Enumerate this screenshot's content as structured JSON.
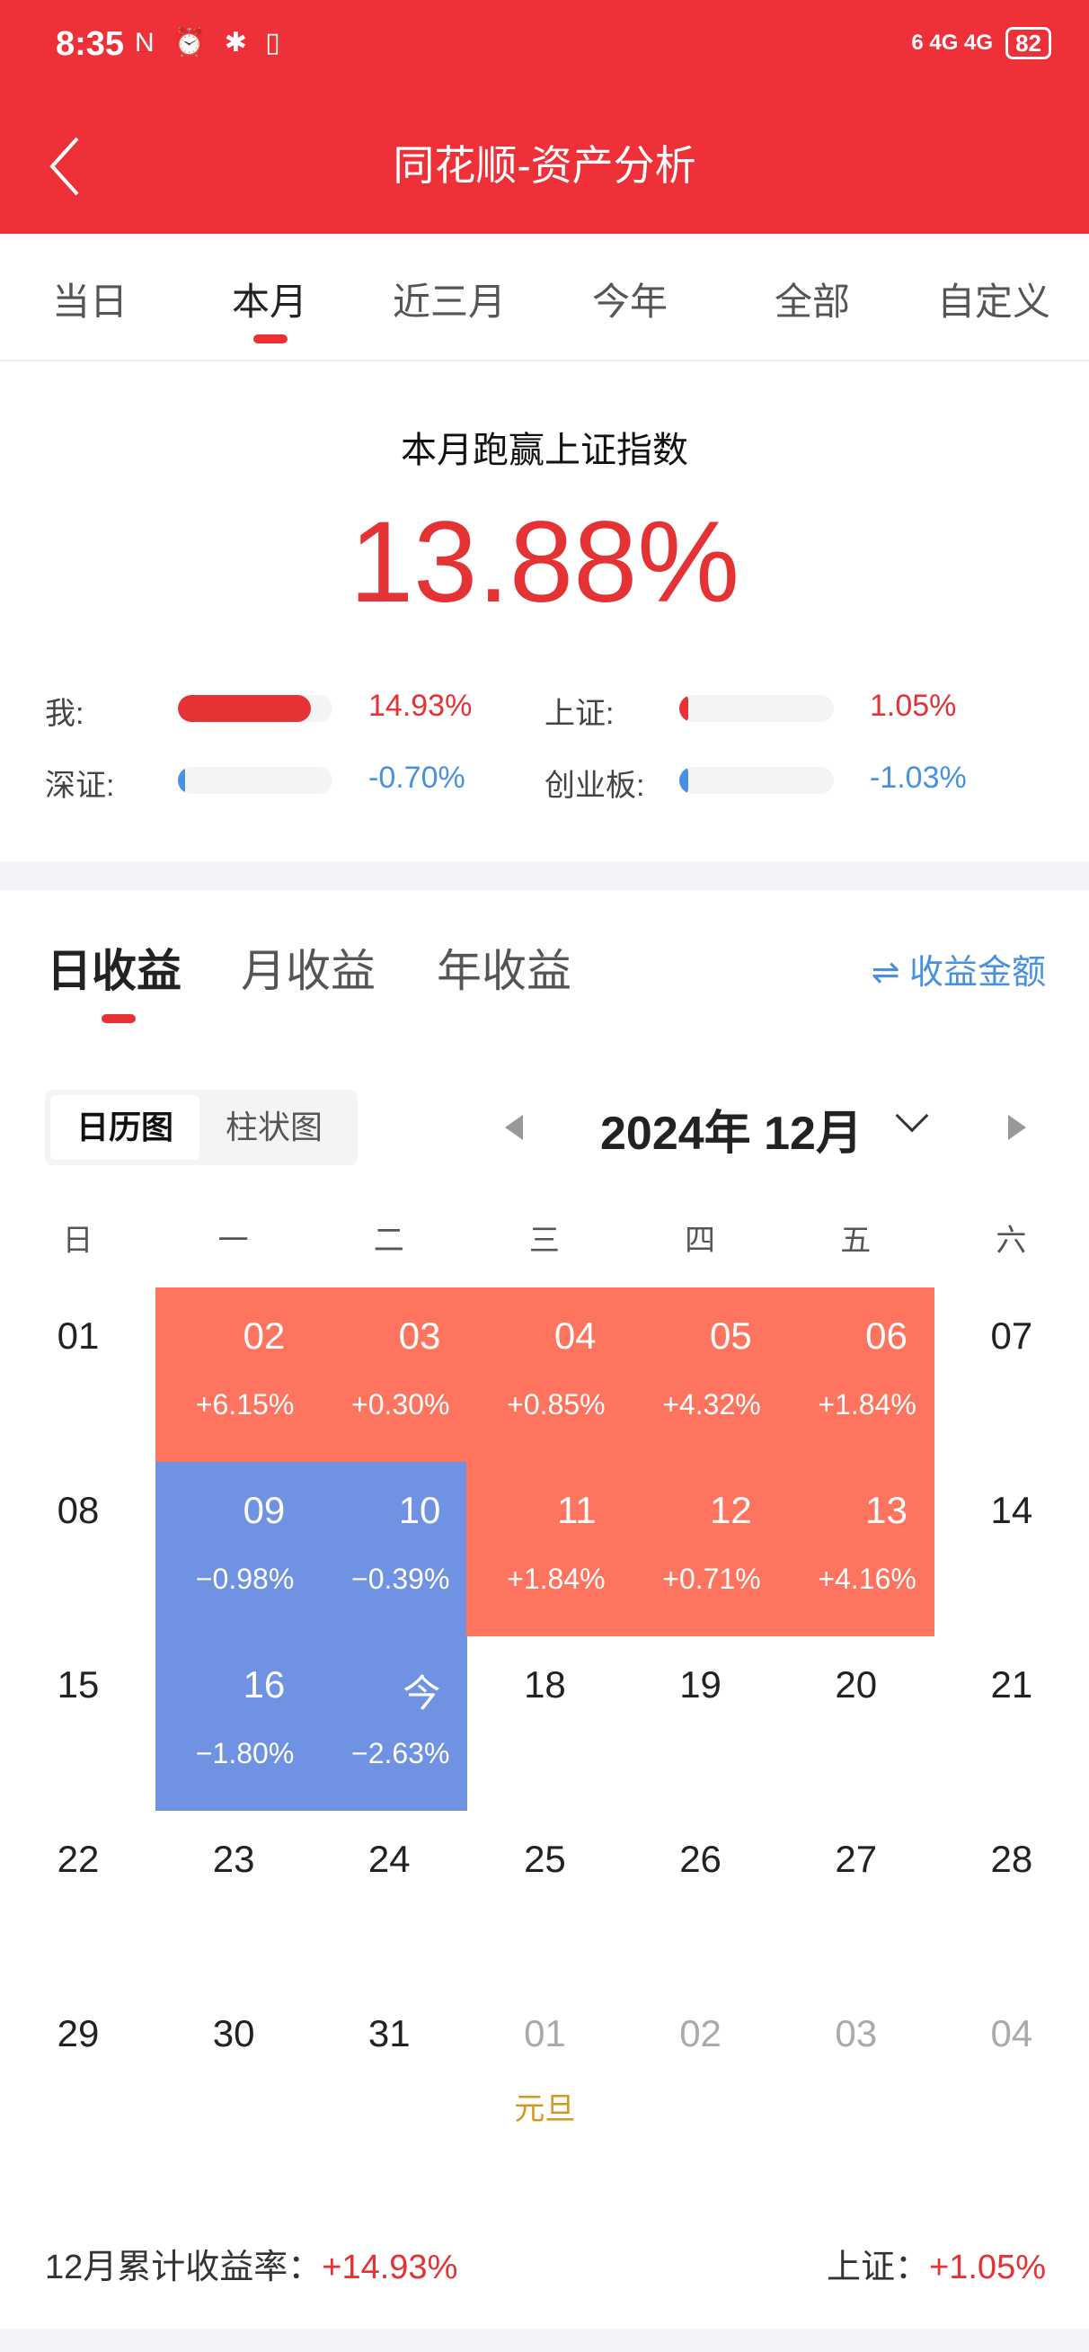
{
  "status": {
    "time": "8:35",
    "icons": "N ⏰ ✱ ▯",
    "network": "6 4G 4G",
    "battery": "82"
  },
  "header": {
    "title": "同花顺-资产分析",
    "back_icon": "chevron-left-icon"
  },
  "period_tabs": [
    {
      "label": "当日"
    },
    {
      "label": "本月",
      "active": true
    },
    {
      "label": "近三月"
    },
    {
      "label": "今年"
    },
    {
      "label": "全部"
    },
    {
      "label": "自定义"
    }
  ],
  "summary": {
    "title": "本月跑赢上证指数",
    "value": "13.88%",
    "compare": [
      {
        "label": "我:",
        "value": "14.93%",
        "pct": 14.93,
        "color": "#e53235"
      },
      {
        "label": "上证:",
        "value": "1.05%",
        "pct": 1.05,
        "color": "#e53235"
      },
      {
        "label": "深证:",
        "value": "-0.70%",
        "pct": -0.7,
        "color": "#4a90e2"
      },
      {
        "label": "创业板:",
        "value": "-1.03%",
        "pct": -1.03,
        "color": "#4a90e2"
      }
    ]
  },
  "returns": {
    "tabs": [
      {
        "label": "日收益",
        "active": true
      },
      {
        "label": "月收益"
      },
      {
        "label": "年收益"
      }
    ],
    "toggle": "⇌ 收益金额",
    "view": {
      "options": [
        "日历图",
        "柱状图"
      ],
      "selected": "日历图"
    },
    "month": "2024年 12月",
    "weekdays": [
      "日",
      "一",
      "二",
      "三",
      "四",
      "五",
      "六"
    ],
    "colors": {
      "positive": "#ff745f",
      "negative": "#7092e2",
      "holiday": "#d49a1e"
    },
    "weeks": [
      [
        {
          "d": "01",
          "t": "none"
        },
        {
          "d": "02",
          "p": "+6.15%",
          "t": "pos"
        },
        {
          "d": "03",
          "p": "+0.30%",
          "t": "pos"
        },
        {
          "d": "04",
          "p": "+0.85%",
          "t": "pos"
        },
        {
          "d": "05",
          "p": "+4.32%",
          "t": "pos"
        },
        {
          "d": "06",
          "p": "+1.84%",
          "t": "pos"
        },
        {
          "d": "07",
          "t": "none"
        }
      ],
      [
        {
          "d": "08",
          "t": "none"
        },
        {
          "d": "09",
          "p": "−0.98%",
          "t": "neg"
        },
        {
          "d": "10",
          "p": "−0.39%",
          "t": "neg"
        },
        {
          "d": "11",
          "p": "+1.84%",
          "t": "pos"
        },
        {
          "d": "12",
          "p": "+0.71%",
          "t": "pos"
        },
        {
          "d": "13",
          "p": "+4.16%",
          "t": "pos"
        },
        {
          "d": "14",
          "t": "none"
        }
      ],
      [
        {
          "d": "15",
          "t": "none"
        },
        {
          "d": "16",
          "p": "−1.80%",
          "t": "neg"
        },
        {
          "d": "今",
          "p": "−2.63%",
          "t": "neg"
        },
        {
          "d": "18",
          "t": "none"
        },
        {
          "d": "19",
          "t": "none"
        },
        {
          "d": "20",
          "t": "none"
        },
        {
          "d": "21",
          "t": "none"
        }
      ],
      [
        {
          "d": "22",
          "t": "none"
        },
        {
          "d": "23",
          "t": "none"
        },
        {
          "d": "24",
          "t": "none"
        },
        {
          "d": "25",
          "t": "none"
        },
        {
          "d": "26",
          "t": "none"
        },
        {
          "d": "27",
          "t": "none"
        },
        {
          "d": "28",
          "t": "none"
        }
      ],
      [
        {
          "d": "29",
          "t": "none"
        },
        {
          "d": "30",
          "t": "none"
        },
        {
          "d": "31",
          "t": "none"
        },
        {
          "d": "01",
          "t": "next",
          "h": "元旦"
        },
        {
          "d": "02",
          "t": "next"
        },
        {
          "d": "03",
          "t": "next"
        },
        {
          "d": "04",
          "t": "next"
        }
      ]
    ]
  },
  "footer": {
    "cum_label": "12月累计收益率：",
    "cum_value": "+14.93%",
    "index_label": "上证：",
    "index_value": "+1.05%"
  }
}
